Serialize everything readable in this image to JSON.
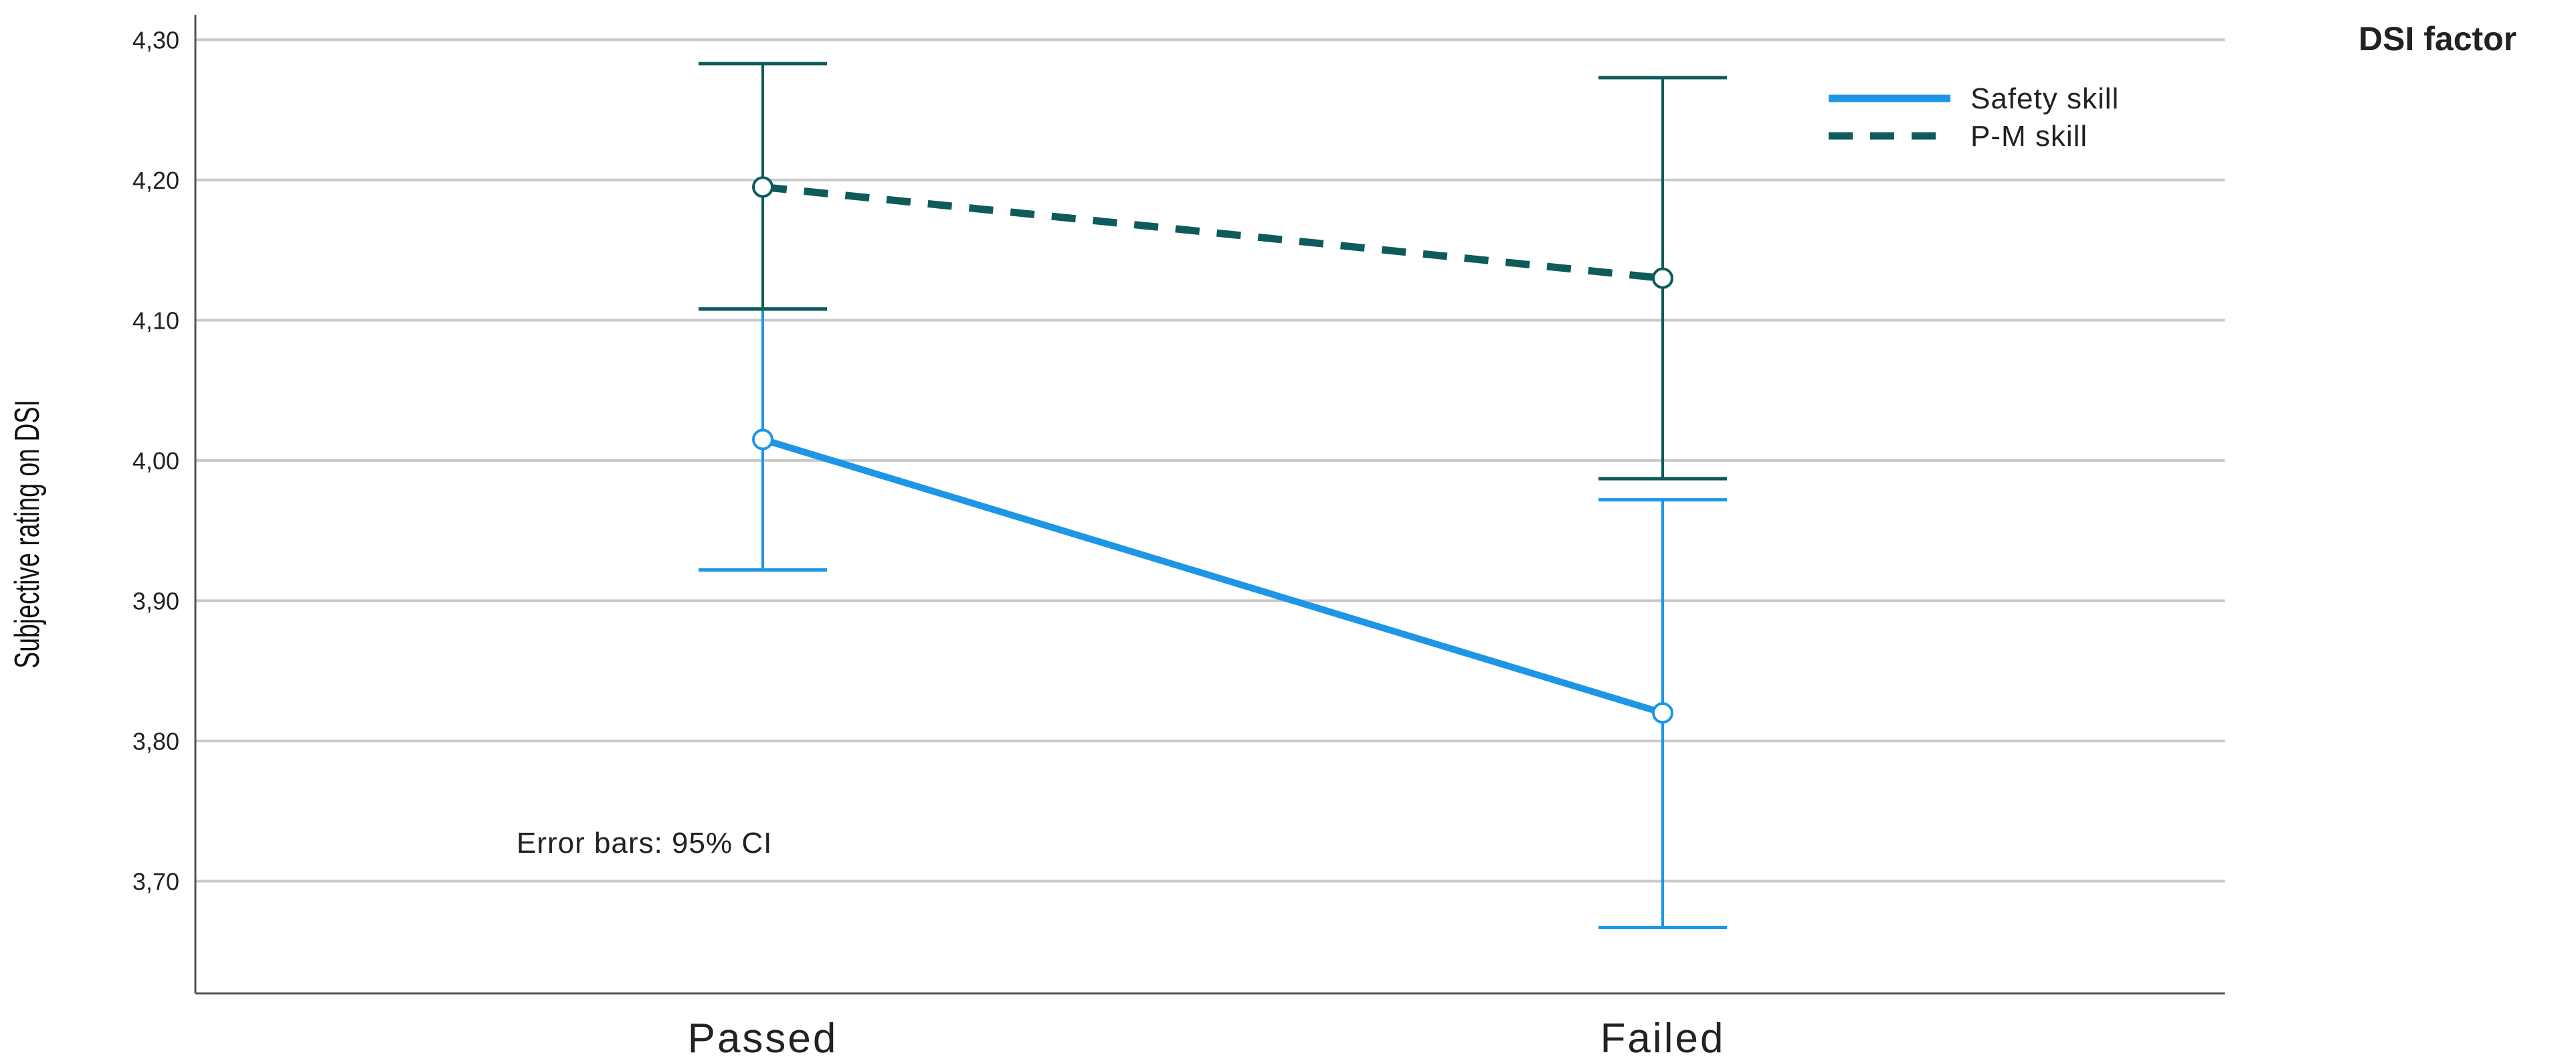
{
  "chart_data": {
    "type": "line",
    "ylabel": "Subjective rating on DSI",
    "xlabel": "",
    "categories": [
      "Passed",
      "Failed"
    ],
    "ylim": [
      3.62,
      4.315
    ],
    "yticks": [
      3.7,
      3.8,
      3.9,
      4.0,
      4.1,
      4.2,
      4.3
    ],
    "ytick_labels": [
      "3,70",
      "3,80",
      "3,90",
      "4,00",
      "4,10",
      "4,20",
      "4,30"
    ],
    "grid": true,
    "annotation": "Error bars: 95% CI",
    "legend": {
      "title": "DSI factor",
      "placement": "top-right"
    },
    "series": [
      {
        "name": "Safety skill",
        "color": "#1e96e6",
        "dash": "solid",
        "values": [
          4.015,
          3.82
        ],
        "ci_low": [
          3.922,
          3.667
        ],
        "ci_high": [
          4.108,
          3.972
        ]
      },
      {
        "name": "P-M skill",
        "color": "#0e5b5b",
        "dash": "dashed",
        "values": [
          4.195,
          4.13
        ],
        "ci_low": [
          4.108,
          3.987
        ],
        "ci_high": [
          4.283,
          4.273
        ]
      }
    ]
  }
}
